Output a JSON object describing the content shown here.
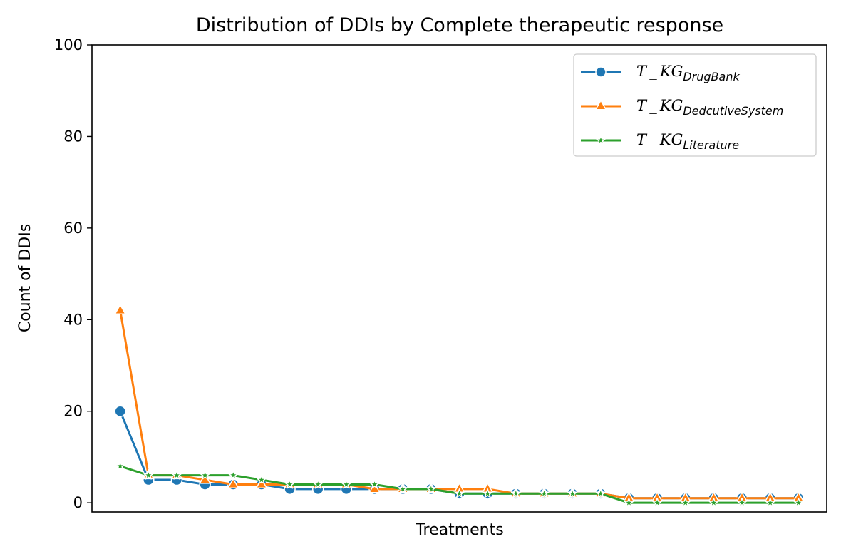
{
  "chart_data": {
    "type": "line",
    "title": "Distribution of DDIs by Complete therapeutic response",
    "xlabel": "Treatments",
    "ylabel": "Count of DDIs",
    "ylim": [
      -2,
      100
    ],
    "yticks": [
      0,
      20,
      40,
      60,
      80,
      100
    ],
    "x_ticks_shown": false,
    "grid": false,
    "legend_position": "top-right",
    "x": [
      1,
      2,
      3,
      4,
      5,
      6,
      7,
      8,
      9,
      10,
      11,
      12,
      13,
      14,
      15,
      16,
      17,
      18,
      19,
      20,
      21,
      22,
      23,
      24,
      25
    ],
    "series": [
      {
        "name": "T_KG",
        "subscript": "DrugBank",
        "color": "#1f77b4",
        "marker": "circle",
        "values": [
          20,
          5,
          5,
          4,
          4,
          4,
          3,
          3,
          3,
          3,
          3,
          3,
          2,
          2,
          2,
          2,
          2,
          2,
          1,
          1,
          1,
          1,
          1,
          1,
          1
        ]
      },
      {
        "name": "T_KG",
        "subscript": "DedcutiveSystem",
        "color": "#ff7f0e",
        "marker": "triangle",
        "values": [
          42,
          6,
          6,
          5,
          4,
          4,
          4,
          4,
          4,
          3,
          3,
          3,
          3,
          3,
          2,
          2,
          2,
          2,
          1,
          1,
          1,
          1,
          1,
          1,
          1
        ]
      },
      {
        "name": "T_KG",
        "subscript": "Literature",
        "color": "#2ca02c",
        "marker": "star",
        "values": [
          8,
          6,
          6,
          6,
          6,
          5,
          4,
          4,
          4,
          4,
          3,
          3,
          2,
          2,
          2,
          2,
          2,
          2,
          0,
          0,
          0,
          0,
          0,
          0,
          0
        ]
      }
    ]
  }
}
